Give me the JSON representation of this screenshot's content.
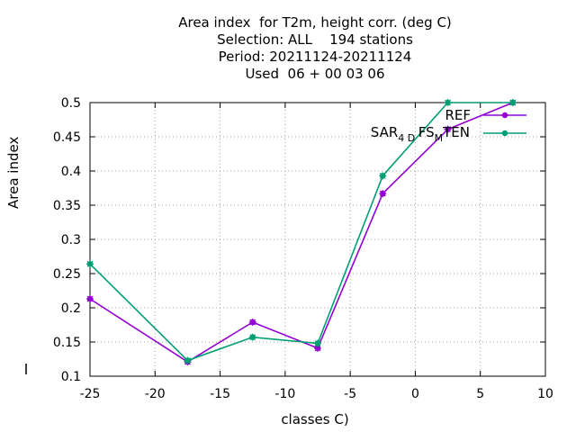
{
  "chart_data": {
    "type": "line",
    "title_lines": [
      "Area index  for T2m, height corr. (deg C)",
      "Selection: ALL    194 stations",
      "Period: 20211124-20211124",
      "Used  06 + 00 03 06"
    ],
    "xlabel": "classes C)",
    "ylabel": "Area index",
    "xlim": [
      -25,
      10
    ],
    "ylim": [
      0.1,
      0.5
    ],
    "xticks": [
      -25,
      -20,
      -15,
      -10,
      -5,
      0,
      5,
      10
    ],
    "yticks": [
      0.1,
      0.15,
      0.2,
      0.25,
      0.3,
      0.35,
      0.4,
      0.45,
      0.5
    ],
    "grid": true,
    "legend_position": "top-right",
    "series": [
      {
        "name": "REF",
        "color": "#9400d3",
        "x": [
          -25,
          -17.5,
          -12.5,
          -7.5,
          -2.5,
          2.5,
          7.5
        ],
        "y": [
          0.213,
          0.121,
          0.179,
          0.141,
          0.367,
          0.461,
          0.5
        ]
      },
      {
        "name": "SAR_4D_FS_M_TEN",
        "name_parts": [
          "SAR",
          "4",
          "D",
          "FS",
          "M",
          "TEN"
        ],
        "color": "#009e73",
        "x": [
          -25,
          -17.5,
          -12.5,
          -7.5,
          -2.5,
          2.5,
          7.5
        ],
        "y": [
          0.264,
          0.123,
          0.157,
          0.148,
          0.393,
          0.5,
          0.5
        ]
      }
    ]
  }
}
